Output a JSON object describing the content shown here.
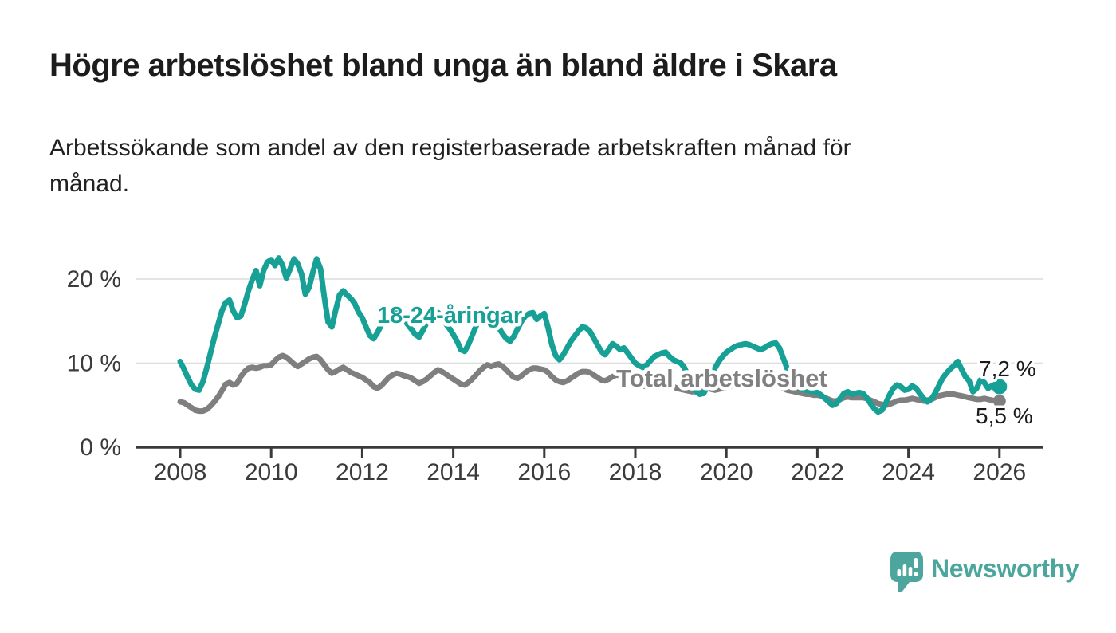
{
  "page": {
    "title": "Högre arbetslöshet bland unga än bland äldre i Skara",
    "subtitle_line1": "Arbetssökande som andel av den registerbaserade arbetskraften månad för",
    "subtitle_line2": "månad."
  },
  "colors": {
    "young_line": "#17a096",
    "total_line": "#7f7f7f",
    "grid": "#dcdcdc",
    "axis": "#3a3a3a",
    "axis_text": "#3b3b3b",
    "title_text": "#1c1c1c",
    "logo_teal": "#4ca69e"
  },
  "branding": {
    "logo_text": "Newsworthy",
    "logo_icon": "speech-bubble-bar-chart-icon"
  },
  "chart_data": {
    "type": "line",
    "title": "Högre arbetslöshet bland unga än bland äldre i Skara",
    "subtitle": "Arbetssökande som andel av den registerbaserade arbetskraften månad för månad.",
    "x_unit": "month",
    "x_start": "2008-01",
    "x_end": "2026-01",
    "x_ticks": [
      "2008",
      "2010",
      "2012",
      "2014",
      "2016",
      "2018",
      "2020",
      "2022",
      "2024",
      "2026"
    ],
    "y_ticks": [
      {
        "label": "20 %",
        "value": 20
      },
      {
        "label": "10 %",
        "value": 10
      },
      {
        "label": "0 %",
        "value": 0
      }
    ],
    "ylim": [
      0,
      24
    ],
    "grid": "horizontal",
    "legend_position": "inline-labels",
    "series": [
      {
        "name": "18-24-åringar",
        "label": "18-24-åringar",
        "end_label": "7,2 %",
        "latest_value": 7.2,
        "color": "#17a096",
        "values": [
          10.2,
          9.3,
          8.3,
          7.4,
          6.9,
          6.8,
          7.8,
          9.4,
          11.2,
          13.0,
          14.6,
          16.2,
          17.2,
          17.5,
          16.2,
          15.4,
          15.6,
          17.0,
          18.6,
          19.9,
          21.0,
          19.2,
          21.0,
          22.0,
          22.3,
          21.6,
          22.5,
          21.6,
          20.1,
          21.2,
          22.4,
          21.8,
          20.6,
          18.2,
          19.0,
          20.8,
          22.4,
          21.2,
          17.9,
          14.9,
          14.3,
          16.3,
          18.1,
          18.6,
          18.1,
          17.7,
          17.1,
          16.1,
          15.4,
          14.3,
          13.3,
          12.9,
          13.6,
          14.5,
          15.3,
          16.0,
          16.5,
          16.3,
          15.8,
          15.2,
          14.6,
          14.0,
          13.4,
          13.1,
          13.9,
          14.8,
          15.6,
          16.2,
          16.0,
          15.4,
          14.7,
          14.1,
          13.4,
          12.6,
          11.6,
          11.4,
          12.2,
          13.3,
          14.4,
          15.4,
          16.1,
          16.4,
          15.9,
          15.0,
          14.2,
          13.5,
          12.9,
          12.6,
          13.2,
          14.1,
          15.0,
          15.6,
          15.9,
          16.0,
          15.2,
          15.6,
          15.9,
          14.2,
          12.2,
          10.9,
          10.4,
          11.0,
          11.8,
          12.6,
          13.2,
          13.8,
          14.3,
          14.2,
          13.8,
          13.0,
          12.2,
          11.4,
          11.0,
          11.6,
          12.3,
          12.0,
          11.6,
          11.8,
          11.2,
          10.6,
          10.0,
          9.7,
          9.5,
          9.8,
          10.3,
          10.8,
          11.0,
          11.2,
          11.3,
          10.8,
          10.4,
          10.2,
          10.0,
          9.4,
          8.4,
          7.4,
          6.6,
          6.3,
          6.4,
          7.2,
          8.3,
          9.4,
          10.2,
          10.8,
          11.3,
          11.6,
          11.9,
          12.1,
          12.2,
          12.3,
          12.2,
          12.0,
          11.8,
          11.6,
          11.8,
          12.1,
          12.3,
          12.4,
          11.8,
          10.6,
          9.4,
          8.3,
          7.6,
          7.1,
          6.9,
          6.8,
          6.7,
          6.6,
          6.5,
          6.2,
          5.8,
          5.4,
          5.0,
          5.2,
          5.8,
          6.4,
          6.6,
          6.3,
          6.4,
          6.5,
          6.4,
          5.9,
          5.2,
          4.6,
          4.2,
          4.4,
          5.2,
          6.2,
          7.0,
          7.4,
          7.2,
          6.8,
          6.9,
          7.3,
          7.0,
          6.4,
          5.8,
          5.4,
          5.7,
          6.4,
          7.3,
          8.2,
          8.8,
          9.3,
          9.7,
          10.2,
          9.3,
          8.4,
          7.9,
          6.6,
          7.0,
          8.0,
          7.7,
          7.0,
          7.3,
          7.5,
          7.2
        ]
      },
      {
        "name": "Total arbetslöshet",
        "label": "Total arbetslöshet",
        "end_label": "5,5 %",
        "latest_value": 5.5,
        "color": "#7f7f7f",
        "values": [
          5.4,
          5.3,
          5.0,
          4.7,
          4.4,
          4.3,
          4.3,
          4.5,
          4.9,
          5.4,
          6.0,
          6.7,
          7.5,
          7.7,
          7.4,
          7.6,
          8.4,
          9.0,
          9.4,
          9.5,
          9.4,
          9.5,
          9.7,
          9.7,
          9.8,
          10.3,
          10.7,
          10.9,
          10.7,
          10.3,
          9.9,
          9.6,
          9.9,
          10.2,
          10.5,
          10.7,
          10.8,
          10.4,
          9.8,
          9.2,
          8.8,
          9.0,
          9.3,
          9.5,
          9.2,
          8.9,
          8.7,
          8.5,
          8.3,
          8.0,
          7.7,
          7.2,
          7.0,
          7.3,
          7.8,
          8.3,
          8.6,
          8.8,
          8.7,
          8.5,
          8.4,
          8.2,
          7.9,
          7.6,
          7.8,
          8.1,
          8.5,
          8.9,
          9.2,
          9.0,
          8.7,
          8.4,
          8.1,
          7.8,
          7.5,
          7.4,
          7.7,
          8.1,
          8.6,
          9.1,
          9.5,
          9.8,
          9.6,
          9.8,
          9.9,
          9.6,
          9.2,
          8.7,
          8.3,
          8.2,
          8.5,
          8.9,
          9.2,
          9.4,
          9.4,
          9.3,
          9.2,
          8.9,
          8.4,
          8.0,
          7.8,
          7.7,
          7.9,
          8.2,
          8.5,
          8.8,
          9.0,
          9.0,
          8.9,
          8.6,
          8.3,
          8.0,
          7.9,
          8.1,
          8.4,
          8.6,
          8.5,
          8.3,
          8.1,
          7.9,
          7.7,
          7.5,
          7.3,
          7.2,
          7.3,
          7.5,
          7.6,
          7.7,
          7.6,
          7.4,
          7.2,
          7.0,
          6.9,
          6.8,
          6.7,
          6.6,
          6.7,
          6.8,
          7.0,
          7.0,
          6.9,
          6.8,
          6.9,
          7.0,
          7.1,
          7.2,
          7.5,
          7.8,
          8.0,
          8.1,
          8.0,
          7.9,
          7.8,
          7.6,
          7.5,
          7.5,
          7.5,
          7.4,
          7.2,
          7.0,
          6.8,
          6.7,
          6.6,
          6.5,
          6.4,
          6.3,
          6.3,
          6.2,
          6.2,
          6.1,
          5.9,
          5.7,
          5.5,
          5.5,
          5.7,
          5.9,
          6.0,
          5.9,
          5.9,
          5.9,
          5.9,
          5.8,
          5.6,
          5.4,
          5.2,
          5.1,
          5.0,
          5.1,
          5.3,
          5.5,
          5.6,
          5.6,
          5.7,
          5.8,
          5.7,
          5.6,
          5.5,
          5.6,
          5.7,
          5.9,
          6.1,
          6.2,
          6.3,
          6.3,
          6.3,
          6.2,
          6.1,
          6.0,
          5.9,
          5.8,
          5.7,
          5.7,
          5.8,
          5.7,
          5.6,
          5.5,
          5.5
        ]
      }
    ]
  }
}
